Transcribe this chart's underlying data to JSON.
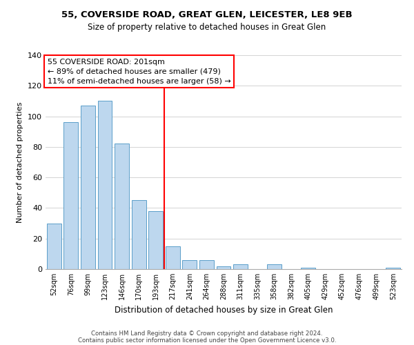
{
  "title1": "55, COVERSIDE ROAD, GREAT GLEN, LEICESTER, LE8 9EB",
  "title2": "Size of property relative to detached houses in Great Glen",
  "xlabel": "Distribution of detached houses by size in Great Glen",
  "ylabel": "Number of detached properties",
  "bar_labels": [
    "52sqm",
    "76sqm",
    "99sqm",
    "123sqm",
    "146sqm",
    "170sqm",
    "193sqm",
    "217sqm",
    "241sqm",
    "264sqm",
    "288sqm",
    "311sqm",
    "335sqm",
    "358sqm",
    "382sqm",
    "405sqm",
    "429sqm",
    "452sqm",
    "476sqm",
    "499sqm",
    "523sqm"
  ],
  "bar_values": [
    30,
    96,
    107,
    110,
    82,
    45,
    38,
    15,
    6,
    6,
    2,
    3,
    0,
    3,
    0,
    1,
    0,
    0,
    0,
    0,
    1
  ],
  "bar_color": "#bdd7ee",
  "bar_edge_color": "#5a9ec9",
  "vline_x": 6.5,
  "vline_color": "red",
  "annotation_title": "55 COVERSIDE ROAD: 201sqm",
  "annotation_line1": "← 89% of detached houses are smaller (479)",
  "annotation_line2": "11% of semi-detached houses are larger (58) →",
  "annotation_box_color": "white",
  "annotation_box_edge": "red",
  "ylim": [
    0,
    140
  ],
  "yticks": [
    0,
    20,
    40,
    60,
    80,
    100,
    120,
    140
  ],
  "footer1": "Contains HM Land Registry data © Crown copyright and database right 2024.",
  "footer2": "Contains public sector information licensed under the Open Government Licence v3.0."
}
